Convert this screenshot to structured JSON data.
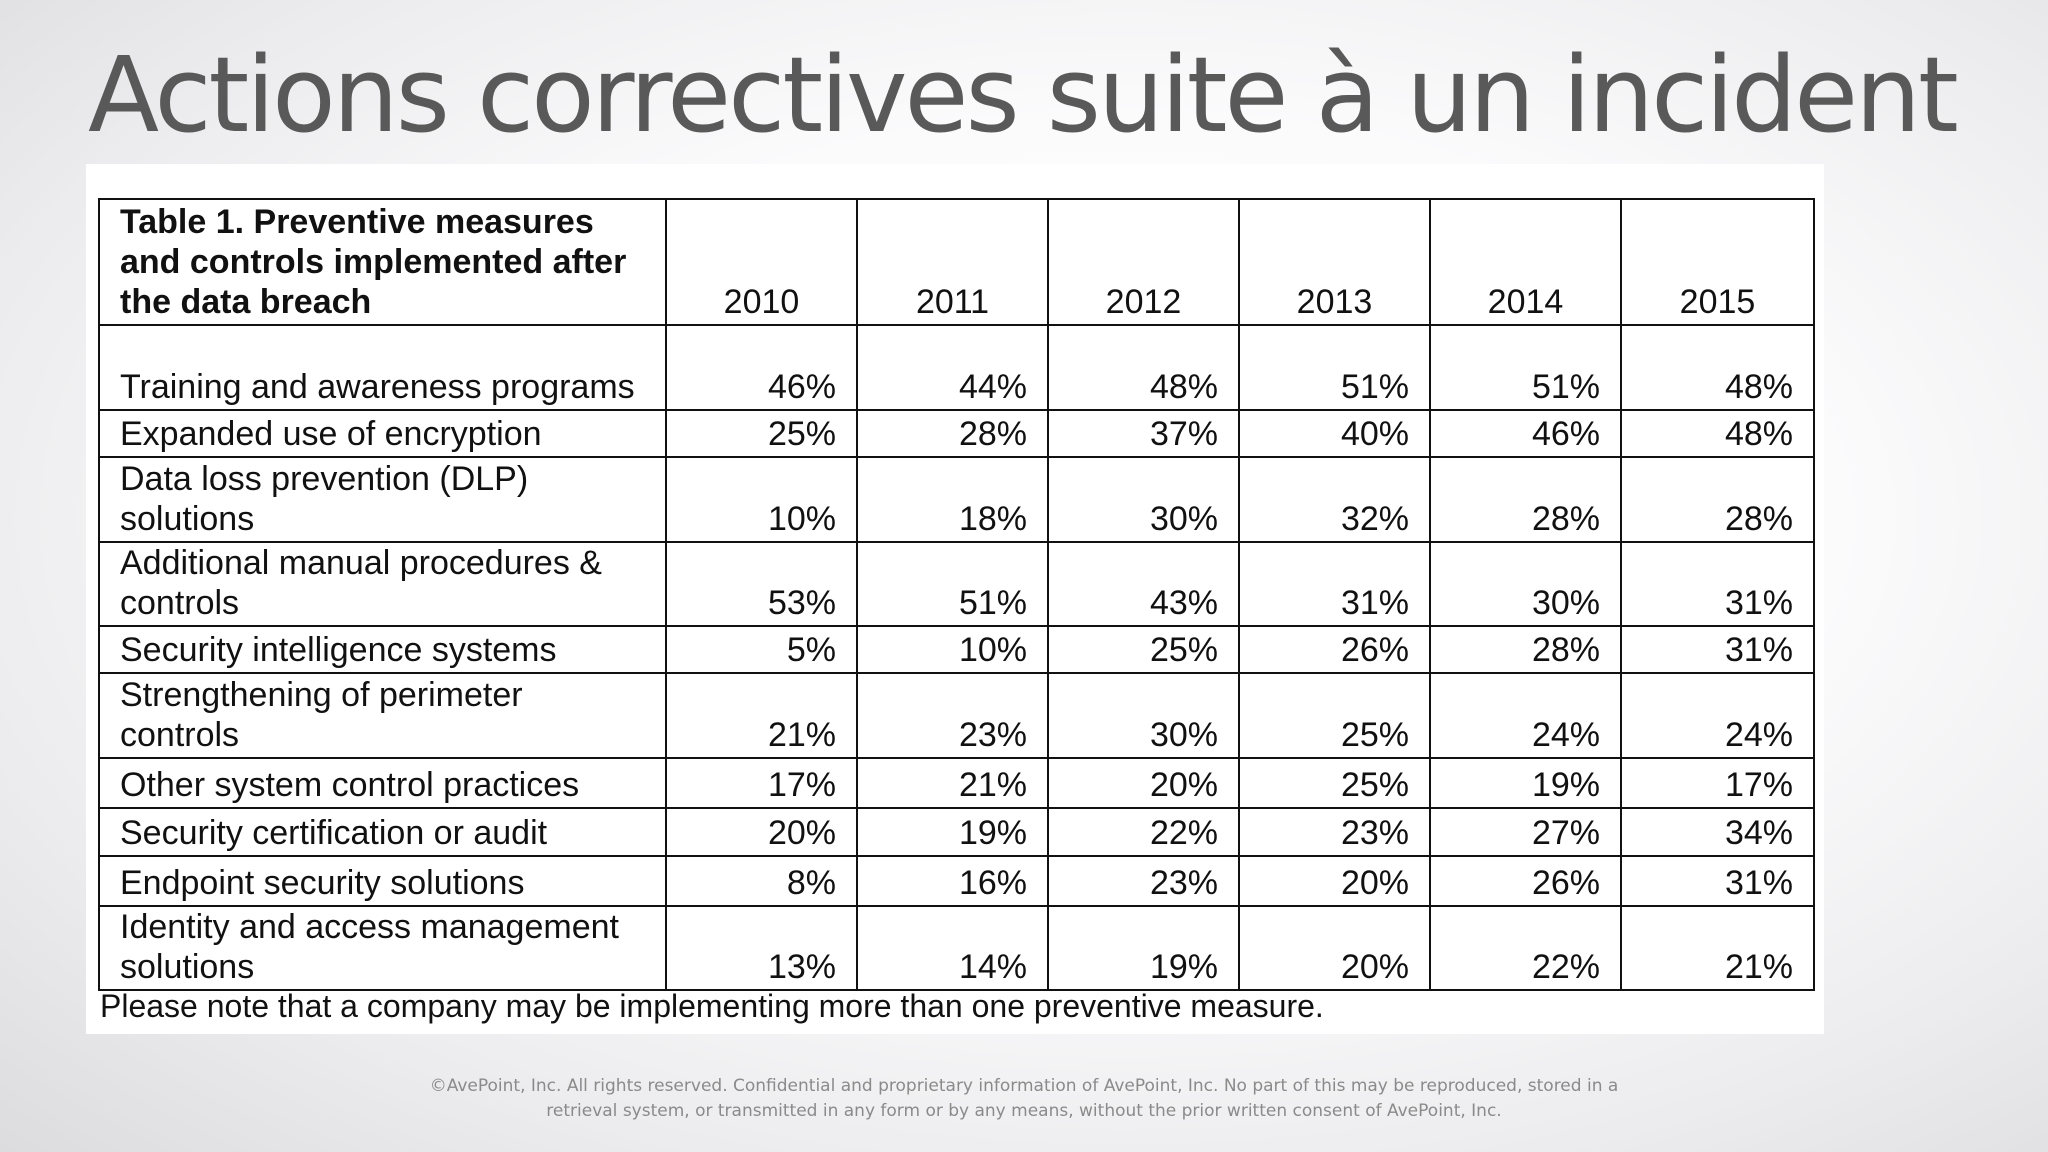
{
  "slide": {
    "title": "Actions correctives suite à un incident",
    "copyright": "©AvePoint, Inc. All rights reserved. Confidential and proprietary information of AvePoint, Inc. No part of this may be reproduced, stored in a retrieval system, or transmitted in any form or by any means, without the prior written consent of AvePoint, Inc."
  },
  "table": {
    "caption": "Table 1. Preventive measures and controls implemented after the data breach",
    "years": [
      "2010",
      "2011",
      "2012",
      "2013",
      "2014",
      "2015"
    ],
    "rows": [
      {
        "label": "Training and awareness programs",
        "values": [
          "46%",
          "44%",
          "48%",
          "51%",
          "51%",
          "48%"
        ]
      },
      {
        "label": "Expanded use of encryption",
        "values": [
          "25%",
          "28%",
          "37%",
          "40%",
          "46%",
          "48%"
        ]
      },
      {
        "label": "Data loss prevention (DLP) solutions",
        "values": [
          "10%",
          "18%",
          "30%",
          "32%",
          "28%",
          "28%"
        ]
      },
      {
        "label": "Additional manual procedures & controls",
        "values": [
          "53%",
          "51%",
          "43%",
          "31%",
          "30%",
          "31%"
        ]
      },
      {
        "label": "Security intelligence systems",
        "values": [
          "5%",
          "10%",
          "25%",
          "26%",
          "28%",
          "31%"
        ]
      },
      {
        "label": "Strengthening of perimeter controls",
        "values": [
          "21%",
          "23%",
          "30%",
          "25%",
          "24%",
          "24%"
        ]
      },
      {
        "label": "Other system control practices",
        "values": [
          "17%",
          "21%",
          "20%",
          "25%",
          "19%",
          "17%"
        ]
      },
      {
        "label": "Security certification or audit",
        "values": [
          "20%",
          "19%",
          "22%",
          "23%",
          "27%",
          "34%"
        ]
      },
      {
        "label": "Endpoint security solutions",
        "values": [
          "8%",
          "16%",
          "23%",
          "20%",
          "26%",
          "31%"
        ]
      },
      {
        "label": "Identity and access management solutions",
        "values": [
          "13%",
          "14%",
          "19%",
          "20%",
          "22%",
          "21%"
        ]
      }
    ],
    "note": "Please note that a company may be implementing more than one preventive measure."
  }
}
